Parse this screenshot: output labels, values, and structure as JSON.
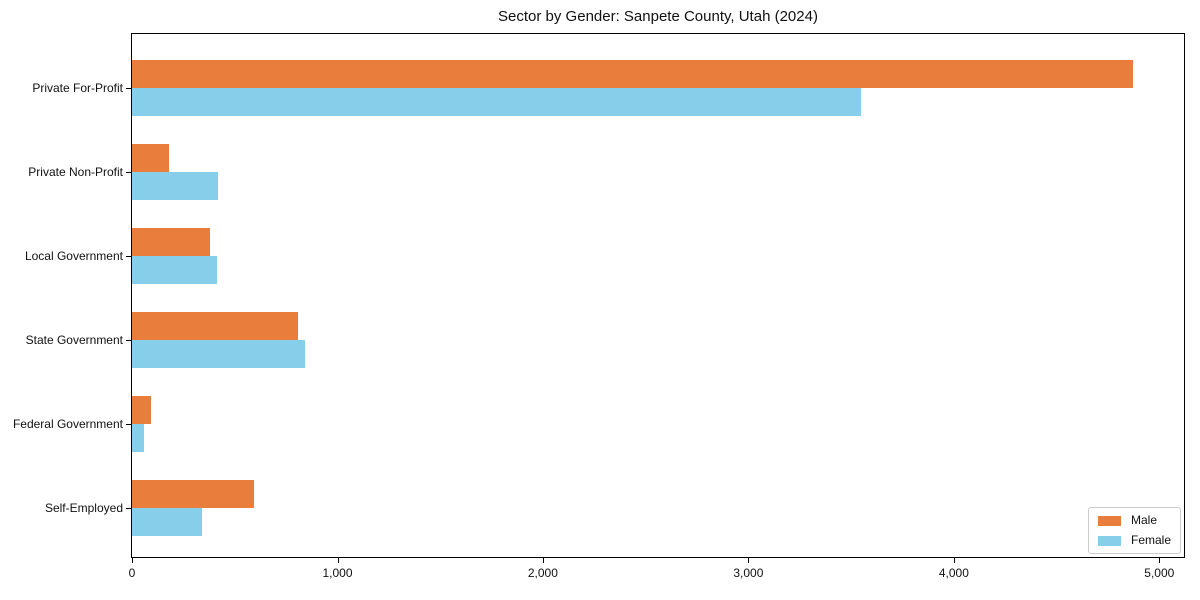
{
  "chart_data": {
    "type": "bar",
    "orientation": "horizontal",
    "title": "Sector by Gender: Sanpete County, Utah (2024)",
    "categories": [
      "Private For-Profit",
      "Private Non-Profit",
      "Local Government",
      "State Government",
      "Federal Government",
      "Self-Employed"
    ],
    "series": [
      {
        "name": "Male",
        "color": "#E87D3C",
        "values": [
          4870,
          180,
          380,
          810,
          90,
          595
        ]
      },
      {
        "name": "Female",
        "color": "#87CEEB",
        "values": [
          3550,
          420,
          415,
          840,
          60,
          340
        ]
      }
    ],
    "xlabel": "",
    "ylabel": "",
    "xlim": [
      0,
      5120
    ],
    "x_ticks": [
      0,
      1000,
      2000,
      3000,
      4000,
      5000
    ],
    "x_tick_labels": [
      "0",
      "1,000",
      "2,000",
      "3,000",
      "4,000",
      "5,000"
    ],
    "grid": false,
    "legend": {
      "position": "lower-right",
      "entries": [
        "Male",
        "Female"
      ]
    },
    "colors": {
      "spine": "#000000",
      "legend_border": "#cccccc",
      "text": "#111111",
      "background": "#ffffff"
    }
  }
}
